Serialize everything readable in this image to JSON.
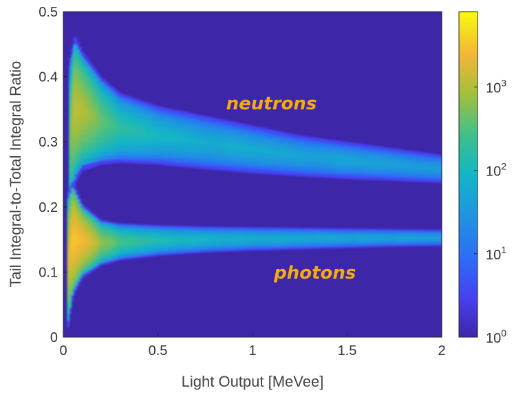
{
  "chart_data": {
    "type": "heatmap",
    "title": "",
    "xlabel": "Light Output [MeVee]",
    "ylabel": "Tail Integral-to-Total Integral Ratio",
    "xlim": [
      0,
      2
    ],
    "ylim": [
      0,
      0.5
    ],
    "xticks": [
      "0",
      "0.5",
      "1",
      "1.5",
      "2"
    ],
    "yticks": [
      "0",
      "0.1",
      "0.2",
      "0.3",
      "0.4",
      "0.5"
    ],
    "colorbar": {
      "scale": "log",
      "range": [
        1,
        8000
      ],
      "ticks": [
        {
          "base": "10",
          "exp": "0",
          "value": 1
        },
        {
          "base": "10",
          "exp": "1",
          "value": 10
        },
        {
          "base": "10",
          "exp": "2",
          "value": 100
        },
        {
          "base": "10",
          "exp": "3",
          "value": 1000
        }
      ],
      "colormap": "parula"
    },
    "background_color": "#3d26a8",
    "annotations": [
      {
        "text": "neutrons",
        "color": "#f6ab0e",
        "x": 1.1,
        "y": 0.35
      },
      {
        "text": "photons",
        "color": "#f6ab0e",
        "x": 1.33,
        "y": 0.09
      }
    ],
    "bands": [
      {
        "name": "neutrons",
        "x": [
          0.03,
          0.06,
          0.1,
          0.2,
          0.3,
          0.5,
          0.75,
          1.0,
          1.25,
          1.5,
          1.75,
          2.0
        ],
        "upper": [
          0.42,
          0.465,
          0.44,
          0.4,
          0.375,
          0.355,
          0.34,
          0.325,
          0.31,
          0.3,
          0.29,
          0.28
        ],
        "lower": [
          0.18,
          0.235,
          0.255,
          0.265,
          0.268,
          0.265,
          0.258,
          0.252,
          0.247,
          0.243,
          0.24,
          0.237
        ],
        "peak_counts": [
          200,
          1500,
          1200,
          500,
          200,
          110,
          80,
          70,
          60,
          55,
          50,
          45
        ]
      },
      {
        "name": "photons",
        "x": [
          0.02,
          0.05,
          0.1,
          0.2,
          0.3,
          0.5,
          0.75,
          1.0,
          1.25,
          1.5,
          1.75,
          2.0
        ],
        "upper": [
          0.22,
          0.24,
          0.205,
          0.18,
          0.175,
          0.172,
          0.17,
          0.169,
          0.168,
          0.167,
          0.166,
          0.165
        ],
        "lower": [
          0.005,
          0.06,
          0.09,
          0.11,
          0.118,
          0.125,
          0.13,
          0.133,
          0.135,
          0.137,
          0.139,
          0.14
        ],
        "peak_counts": [
          800,
          4000,
          3000,
          800,
          300,
          150,
          100,
          80,
          70,
          60,
          55,
          50
        ]
      }
    ]
  }
}
